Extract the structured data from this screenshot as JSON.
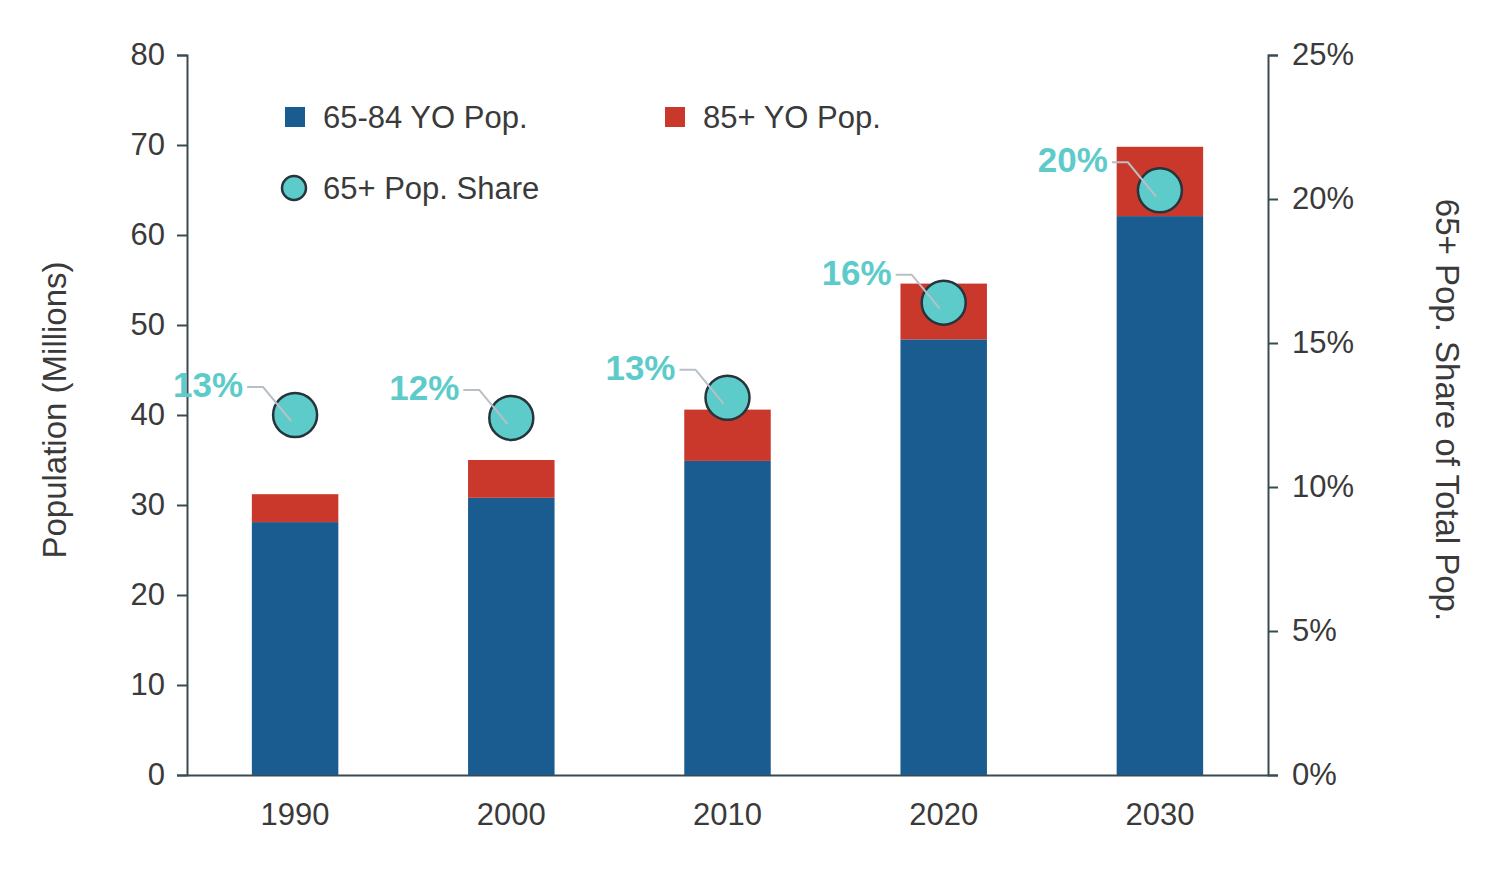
{
  "chart_data": {
    "type": "bar",
    "stacked": true,
    "legend": "top-left",
    "y_label": "Population (Millions)",
    "y2_label": "65+ Pop. Share of Total Pop.",
    "categories": [
      "1990",
      "2000",
      "2010",
      "2020",
      "2030"
    ],
    "ylim": [
      0,
      80
    ],
    "yticks": [
      0,
      10,
      20,
      30,
      40,
      50,
      60,
      70,
      80
    ],
    "y2lim": [
      0,
      25
    ],
    "y2ticks": [
      {
        "value": 0,
        "label": "0%"
      },
      {
        "value": 5,
        "label": "5%"
      },
      {
        "value": 10,
        "label": "10%"
      },
      {
        "value": 15,
        "label": "15%"
      },
      {
        "value": 20,
        "label": "20%"
      },
      {
        "value": 25,
        "label": "25%"
      }
    ],
    "series": [
      {
        "name": "65-84 YO Pop.",
        "type": "bar",
        "color": "#1a5c8f",
        "values": [
          28.1,
          30.8,
          34.9,
          48.4,
          62.1
        ]
      },
      {
        "name": "85+ YO Pop.",
        "type": "bar",
        "color": "#c9382a",
        "values": [
          3.1,
          4.2,
          5.7,
          6.2,
          7.7
        ]
      },
      {
        "name": "65+ Pop. Share",
        "type": "scatter",
        "axis": "y2",
        "marker": "circle",
        "color": "#5ecbcb",
        "data_labels": true,
        "values": [
          12.5,
          12.4,
          13.1,
          16.4,
          20.3
        ],
        "value_labels": [
          "13%",
          "12%",
          "13%",
          "16%",
          "20%"
        ]
      }
    ]
  }
}
